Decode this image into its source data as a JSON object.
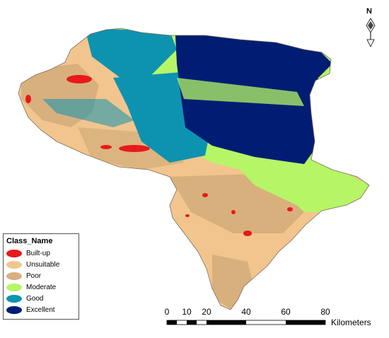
{
  "legend": {
    "title": "Class_Name",
    "items": [
      {
        "label": "Built-up",
        "color": "#e8191a"
      },
      {
        "label": "Unsuitable",
        "color": "#f2c58e"
      },
      {
        "label": "Poor",
        "color": "#d8b07e"
      },
      {
        "label": "Moderate",
        "color": "#b6f566"
      },
      {
        "label": "Good",
        "color": "#0d93b0"
      },
      {
        "label": "Excellent",
        "color": "#001d73"
      }
    ]
  },
  "scale_bar": {
    "ticks": [
      "0",
      "10",
      "20",
      "40",
      "60",
      "80"
    ],
    "unit": "Kilometers"
  },
  "north_arrow": {
    "letter": "N"
  }
}
